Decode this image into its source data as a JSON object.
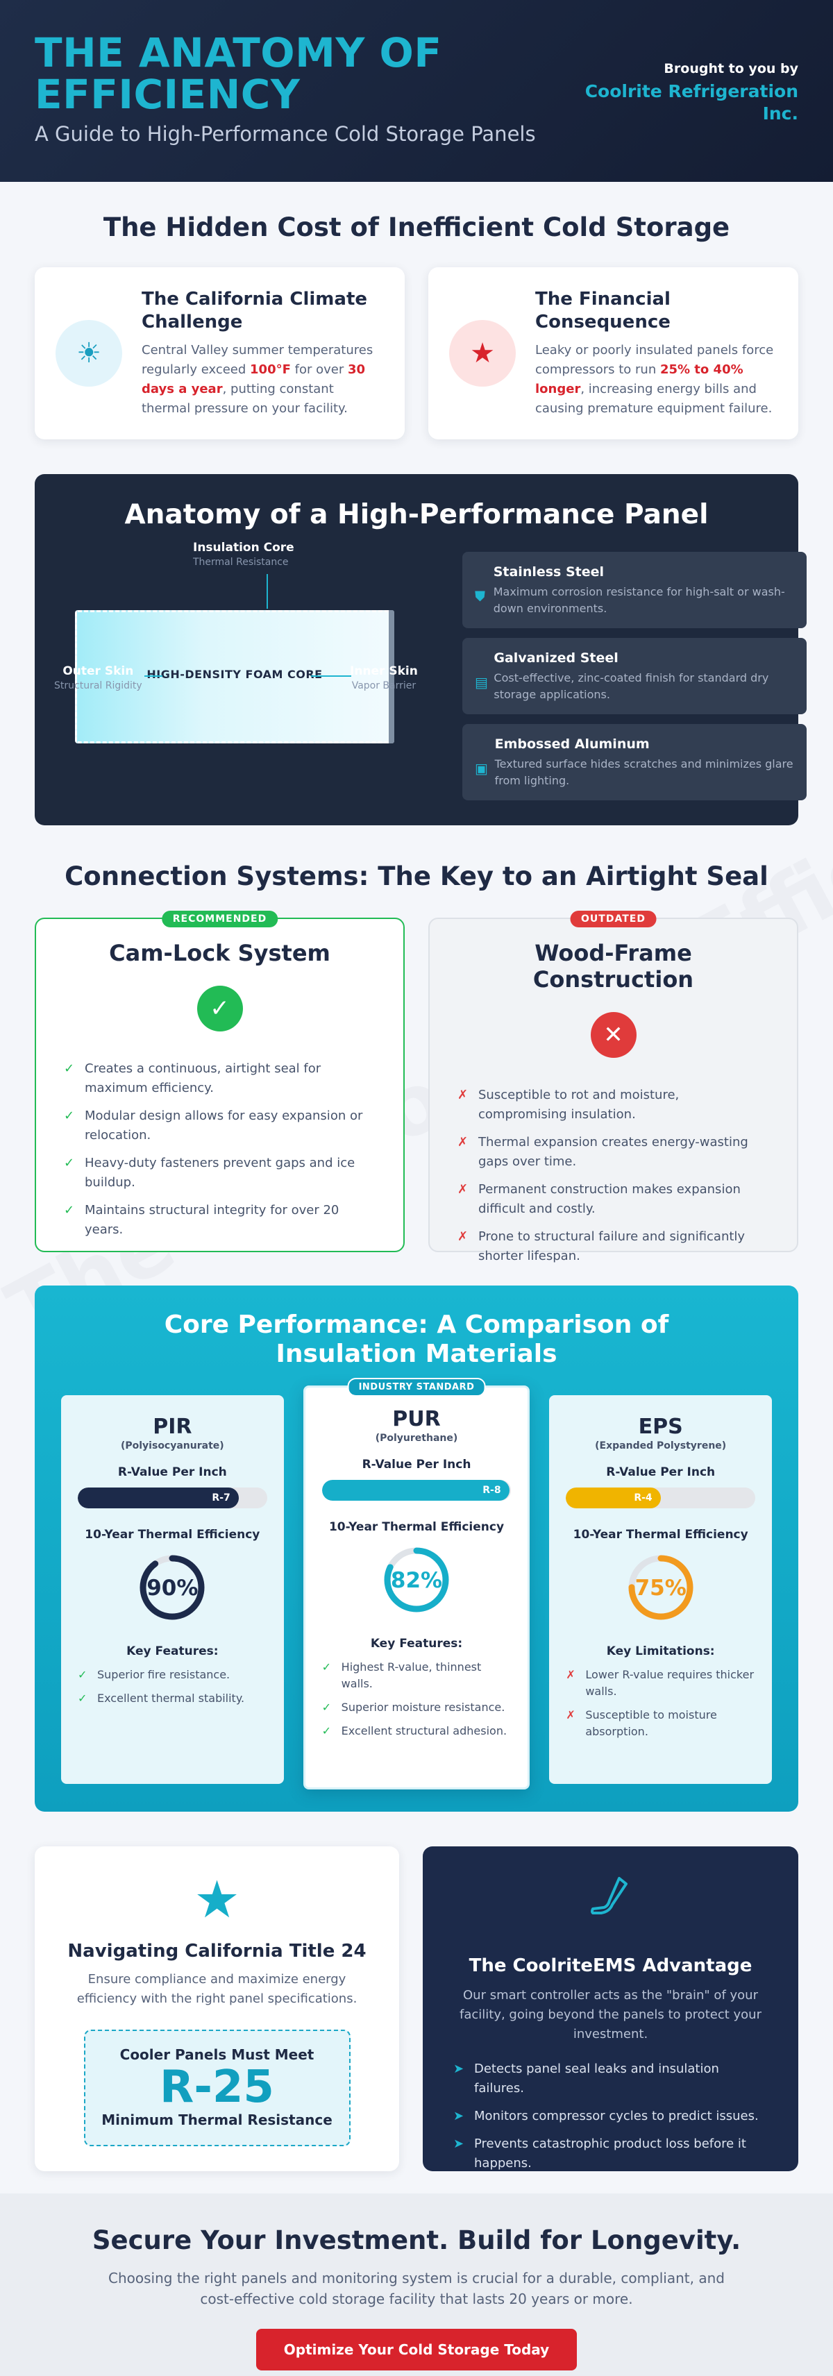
{
  "watermark": "The Anatomy of Efficiency",
  "colors": {
    "accent": "#1eb5d0",
    "red": "#d8232c",
    "green": "#22bb55",
    "navy": "#1e293d"
  },
  "header": {
    "title": "THE ANATOMY OF EFFICIENCY",
    "subtitle": "A Guide to High-Performance Cold Storage Panels",
    "brought_by": "Brought to you by",
    "brand": "Coolrite Refrigeration Inc."
  },
  "cost": {
    "title": "The Hidden Cost of Inefficient Cold Storage",
    "cards": [
      {
        "icon": "sun-icon",
        "title": "The California Climate Challenge",
        "text_a": "Central Valley summer temperatures regularly exceed ",
        "hl1": "100°F",
        "text_b": " for over ",
        "hl2": "30 days a year",
        "text_c": ", putting constant thermal pressure on your facility."
      },
      {
        "icon": "star-icon",
        "title": "The Financial Consequence",
        "text_a": "Leaky or poorly insulated panels force compressors to run ",
        "hl1": "25% to 40% longer",
        "text_b": ", increasing energy bills and causing premature equipment failure."
      }
    ]
  },
  "anatomy": {
    "title": "Anatomy of a High-Performance Panel",
    "core_title": "Insulation Core",
    "core_sub": "Thermal Resistance",
    "outer_title": "Outer Skin",
    "outer_sub": "Structural Rigidity",
    "inner_title": "Inner Skin",
    "inner_sub": "Vapor Barrier",
    "foam_label": "HIGH-DENSITY FOAM CORE",
    "materials": [
      {
        "icon": "shield-icon",
        "title": "Stainless Steel",
        "text": "Maximum corrosion resistance for high-salt or wash-down environments."
      },
      {
        "icon": "box-icon",
        "title": "Galvanized Steel",
        "text": "Cost-effective, zinc-coated finish for standard dry storage applications."
      },
      {
        "icon": "image-icon",
        "title": "Embossed Aluminum",
        "text": "Textured surface hides scratches and minimizes glare from lighting."
      }
    ]
  },
  "connection": {
    "title": "Connection Systems: The Key to an Airtight Seal",
    "good": {
      "tag": "RECOMMENDED",
      "title": "Cam-Lock System",
      "items": [
        "Creates a continuous, airtight seal for maximum efficiency.",
        "Modular design allows for easy expansion or relocation.",
        "Heavy-duty fasteners prevent gaps and ice buildup.",
        "Maintains structural integrity for over 20 years."
      ]
    },
    "bad": {
      "tag": "OUTDATED",
      "title": "Wood-Frame Construction",
      "items": [
        "Susceptible to rot and moisture, compromising insulation.",
        "Thermal expansion creates energy-wasting gaps over time.",
        "Permanent construction makes expansion difficult and costly.",
        "Prone to structural failure and significantly shorter lifespan."
      ]
    }
  },
  "core": {
    "title": "Core Performance: A Comparison of Insulation Materials",
    "r_label": "R-Value Per Inch",
    "eff_label": "10-Year Thermal Efficiency",
    "cards": [
      {
        "name": "PIR",
        "full": "(Polyisocyanurate)",
        "r_value": "R-7",
        "r_fill": 0.85,
        "bar_color": "#1c2a4a",
        "efficiency": "90%",
        "eff_value": 0.9,
        "ring_color": "#1c2a4a",
        "list_title": "Key Features:",
        "list_type": "good",
        "items": [
          "Superior fire resistance.",
          "Excellent thermal stability."
        ]
      },
      {
        "name": "PUR",
        "full": "(Polyurethane)",
        "tag": "INDUSTRY STANDARD",
        "r_value": "R-8",
        "r_fill": 0.99,
        "bar_color": "#16aec9",
        "efficiency": "82%",
        "eff_value": 0.82,
        "ring_color": "#16aec9",
        "list_title": "Key Features:",
        "list_type": "good",
        "items": [
          "Highest R-value, thinnest walls.",
          "Superior moisture resistance.",
          "Excellent structural adhesion."
        ]
      },
      {
        "name": "EPS",
        "full": "(Expanded Polystyrene)",
        "r_value": "R-4",
        "r_fill": 0.5,
        "bar_color": "#f0b400",
        "efficiency": "75%",
        "eff_value": 0.75,
        "ring_color": "#f29a1e",
        "list_title": "Key Limitations:",
        "list_type": "bad",
        "items": [
          "Lower R-value requires thicker walls.",
          "Susceptible to moisture absorption."
        ]
      }
    ]
  },
  "title24": {
    "title": "Navigating California Title 24",
    "text": "Ensure compliance and maximize energy efficiency with the right panel specifications.",
    "box_top": "Cooler Panels Must Meet",
    "box_value": "R-25",
    "box_bottom": "Minimum Thermal Resistance"
  },
  "ems": {
    "title": "The CoolriteEMS Advantage",
    "text": "Our smart controller acts as the \"brain\" of your facility, going beyond the panels to protect your investment.",
    "items": [
      "Detects panel seal leaks and insulation failures.",
      "Monitors compressor cycles to predict issues.",
      "Prevents catastrophic product loss before it happens."
    ]
  },
  "cta": {
    "title": "Secure Your Investment. Build for Longevity.",
    "text": "Choosing the right panels and monitoring system is crucial for a durable, compliant, and cost-effective cold storage facility that lasts 20 years or more.",
    "button": "Optimize Your Cold Storage Today"
  }
}
